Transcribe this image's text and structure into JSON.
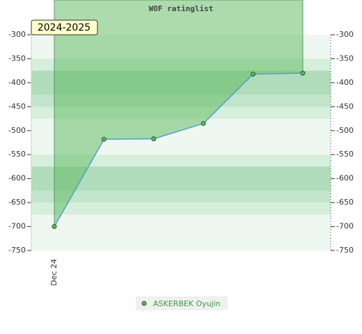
{
  "chart_data": {
    "type": "line",
    "title": "WOF ratinglist",
    "badge": "2024-2025",
    "categories": [
      "Dec 24",
      null,
      null,
      null,
      null,
      null
    ],
    "series": [
      {
        "name": "ASKERBEK Oyujin",
        "color": "#4f9fcf",
        "marker_color": "#5cb85c",
        "fill_color": "#5cb85c",
        "values": [
          -700,
          -518,
          -517,
          -485,
          -382,
          -380
        ]
      }
    ],
    "ylim": [
      -750,
      -300
    ],
    "yticks": [
      -750,
      -700,
      -650,
      -600,
      -550,
      -500,
      -450,
      -400,
      -350,
      -300
    ],
    "right_axis": true,
    "fill": "above",
    "legend": "bottom"
  }
}
